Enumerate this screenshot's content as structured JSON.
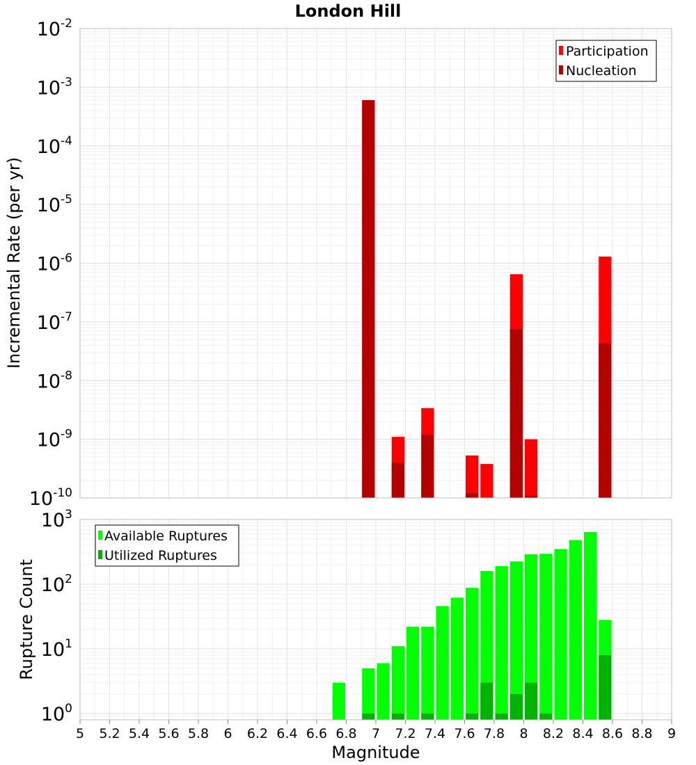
{
  "chart_data": [
    {
      "type": "bar",
      "title": "London Hill",
      "ylabel": "Incremental Rate (per yr)",
      "xlabel": "",
      "yscale": "log",
      "ylim": [
        1e-10,
        0.01
      ],
      "xlim": [
        5,
        9
      ],
      "ytick_exponents": [
        "-2",
        "-3",
        "-4",
        "-5",
        "-6",
        "-7",
        "-8",
        "-9",
        "-10"
      ],
      "legend_position": "top-right",
      "grid": true,
      "series": [
        {
          "name": "Participation",
          "color": "#ff0000",
          "x": [
            6.95,
            7.15,
            7.35,
            7.65,
            7.75,
            7.95,
            8.05,
            8.55
          ],
          "values": [
            0.0006,
            1.1e-09,
            3.4e-09,
            5.3e-10,
            3.8e-10,
            6.5e-07,
            1e-09,
            1.3e-06
          ]
        },
        {
          "name": "Nucleation",
          "color": "#b30000",
          "x": [
            6.95,
            7.15,
            7.35,
            7.65,
            7.95,
            8.05,
            8.55
          ],
          "values": [
            0.0006,
            4e-10,
            1.2e-09,
            1.2e-10,
            7.5e-08,
            1.1e-10,
            4.3e-08
          ]
        }
      ]
    },
    {
      "type": "bar",
      "title": "",
      "ylabel": "Rupture Count",
      "xlabel": "Magnitude",
      "yscale": "log",
      "ylim": [
        0.8,
        1000
      ],
      "xlim": [
        5,
        9
      ],
      "ytick_exponents": [
        "3",
        "2",
        "1",
        "0"
      ],
      "xticks": [
        "5",
        "5.2",
        "5.4",
        "5.6",
        "5.8",
        "6",
        "6.2",
        "6.4",
        "6.6",
        "6.8",
        "7",
        "7.2",
        "7.4",
        "7.6",
        "7.8",
        "8",
        "8.2",
        "8.4",
        "8.6",
        "8.8",
        "9"
      ],
      "legend_position": "top-left",
      "grid": true,
      "series": [
        {
          "name": "Available Ruptures",
          "color": "#00ff00",
          "x": [
            6.75,
            6.95,
            7.05,
            7.15,
            7.25,
            7.35,
            7.45,
            7.55,
            7.65,
            7.75,
            7.85,
            7.95,
            8.05,
            8.15,
            8.25,
            8.35,
            8.45,
            8.55
          ],
          "values": [
            3,
            5,
            6,
            11,
            22,
            22,
            46,
            62,
            88,
            160,
            190,
            225,
            290,
            295,
            350,
            480,
            640,
            28
          ]
        },
        {
          "name": "Utilized Ruptures",
          "color": "#00b300",
          "x": [
            6.95,
            7.15,
            7.35,
            7.65,
            7.75,
            7.85,
            7.95,
            8.05,
            8.15,
            8.55
          ],
          "values": [
            1,
            1,
            1,
            1,
            3,
            1,
            2,
            3,
            1,
            8
          ]
        }
      ]
    }
  ]
}
